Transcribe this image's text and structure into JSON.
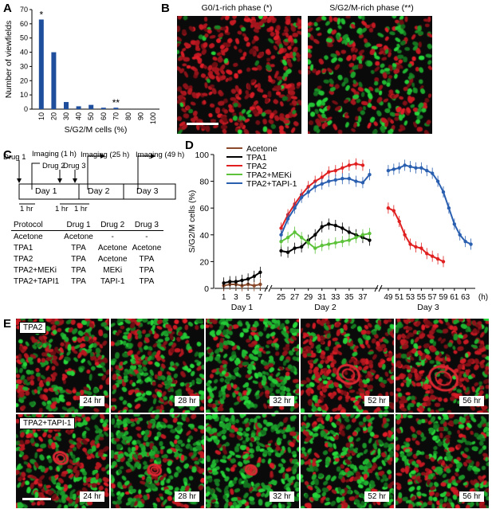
{
  "panels": {
    "A": "A",
    "B": "B",
    "C": "C",
    "D": "D",
    "E": "E"
  },
  "panelA": {
    "chart_data": {
      "type": "bar",
      "categories": [
        "10",
        "20",
        "30",
        "40",
        "50",
        "60",
        "70",
        "80",
        "90",
        "100"
      ],
      "values": [
        63,
        40,
        5,
        2,
        3,
        1,
        1,
        0,
        0,
        0
      ],
      "xlabel": "S/G2/M cells (%)",
      "ylabel": "Number of viewfields",
      "ylim": [
        0,
        70
      ],
      "yticks": [
        "0",
        "10",
        "20",
        "30",
        "40",
        "50",
        "60",
        "70"
      ],
      "annotations": [
        {
          "category": "10",
          "text": "*"
        },
        {
          "category": "70",
          "text": "**"
        }
      ],
      "color": "#1f4e9c"
    }
  },
  "panelB": {
    "left_title": "G0/1-rich phase (*)",
    "right_title": "S/G2/M-rich phase (**)"
  },
  "panelC": {
    "drugs": [
      "Drug 1",
      "Drug 2",
      "Drug 3"
    ],
    "imaging": [
      "Imaging (1 h)",
      "Imaging (25 h)",
      "Imaging (49 h)"
    ],
    "days": [
      "Day 1",
      "Day 2",
      "Day 3"
    ],
    "hr": [
      "1 hr",
      "1 hr",
      "1 hr"
    ],
    "table": {
      "headers": [
        "Protocol",
        "Drug 1",
        "Drug 2",
        "Drug 3"
      ],
      "rows": [
        [
          "Acetone",
          "Acetone",
          "-",
          "-"
        ],
        [
          "TPA1",
          "TPA",
          "Acetone",
          "Acetone"
        ],
        [
          "TPA2",
          "TPA",
          "Acetone",
          "TPA"
        ],
        [
          "TPA2+MEKi",
          "TPA",
          "MEKi",
          "TPA"
        ],
        [
          "TPA2+TAPI1",
          "TPA",
          "TAPI-1",
          "TPA"
        ]
      ]
    }
  },
  "panelD": {
    "chart_data": {
      "type": "line",
      "ylabel": "S/G2/M cells (%)",
      "xunit": "(h)",
      "ylim": [
        0,
        100
      ],
      "yticks": [
        "0",
        "20",
        "40",
        "60",
        "80",
        "100"
      ],
      "day_labels": [
        "Day 1",
        "Day 2",
        "Day 3"
      ],
      "segments": [
        {
          "xrange": [
            0,
            8
          ],
          "ticks": [
            "1",
            "3",
            "5",
            "7"
          ]
        },
        {
          "xrange": [
            24,
            39
          ],
          "ticks": [
            "25",
            "27",
            "29",
            "31",
            "33",
            "35",
            "37"
          ]
        },
        {
          "xrange": [
            48,
            64.5
          ],
          "ticks": [
            "49",
            "51",
            "53",
            "55",
            "57",
            "59",
            "61",
            "63"
          ]
        }
      ],
      "series": [
        {
          "name": "Acetone",
          "color": "#8b4a2b",
          "x": [
            1,
            2,
            3,
            4,
            5,
            6,
            7
          ],
          "y": [
            2,
            3,
            3,
            2,
            3,
            2,
            3
          ]
        },
        {
          "name": "TPA1",
          "color": "#000000",
          "x": [
            1,
            2,
            3,
            4,
            5,
            6,
            7,
            25,
            26,
            27,
            28,
            29,
            30,
            31,
            32,
            33,
            34,
            35,
            36,
            37,
            38
          ],
          "y": [
            4,
            5,
            5,
            6,
            7,
            9,
            12,
            28,
            27,
            30,
            31,
            36,
            40,
            46,
            48,
            47,
            45,
            42,
            40,
            38,
            36
          ]
        },
        {
          "name": "TPA2",
          "color": "#e02020",
          "x": [
            25,
            26,
            27,
            28,
            29,
            30,
            31,
            32,
            33,
            34,
            35,
            36,
            37,
            49,
            50,
            51,
            52,
            53,
            54,
            55,
            56,
            57,
            58,
            59
          ],
          "y": [
            45,
            55,
            63,
            70,
            76,
            80,
            83,
            87,
            88,
            90,
            92,
            93,
            92,
            60,
            58,
            50,
            40,
            33,
            31,
            30,
            26,
            24,
            22,
            20
          ]
        },
        {
          "name": "TPA2+MEKi",
          "color": "#5cc23a",
          "x": [
            25,
            26,
            27,
            28,
            29,
            30,
            31,
            32,
            33,
            34,
            35,
            36,
            37,
            38
          ],
          "y": [
            35,
            38,
            42,
            38,
            34,
            30,
            32,
            33,
            34,
            35,
            36,
            38,
            40,
            41
          ]
        },
        {
          "name": "TPA2+TAPI-1",
          "color": "#2a5fb0",
          "x": [
            25,
            26,
            27,
            28,
            29,
            30,
            31,
            32,
            33,
            34,
            35,
            36,
            37,
            38,
            49,
            50,
            51,
            52,
            53,
            54,
            55,
            56,
            57,
            58,
            59,
            60,
            61,
            62,
            63,
            64
          ],
          "y": [
            40,
            52,
            60,
            68,
            72,
            76,
            78,
            80,
            81,
            82,
            82,
            80,
            79,
            85,
            88,
            89,
            90,
            92,
            91,
            90,
            90,
            88,
            86,
            80,
            72,
            60,
            48,
            40,
            35,
            33
          ]
        }
      ]
    }
  },
  "panelE": {
    "row1_label": "TPA2",
    "row2_label": "TPA2+TAPI-1",
    "times": [
      "24 hr",
      "28 hr",
      "32 hr",
      "52 hr",
      "56 hr"
    ]
  }
}
